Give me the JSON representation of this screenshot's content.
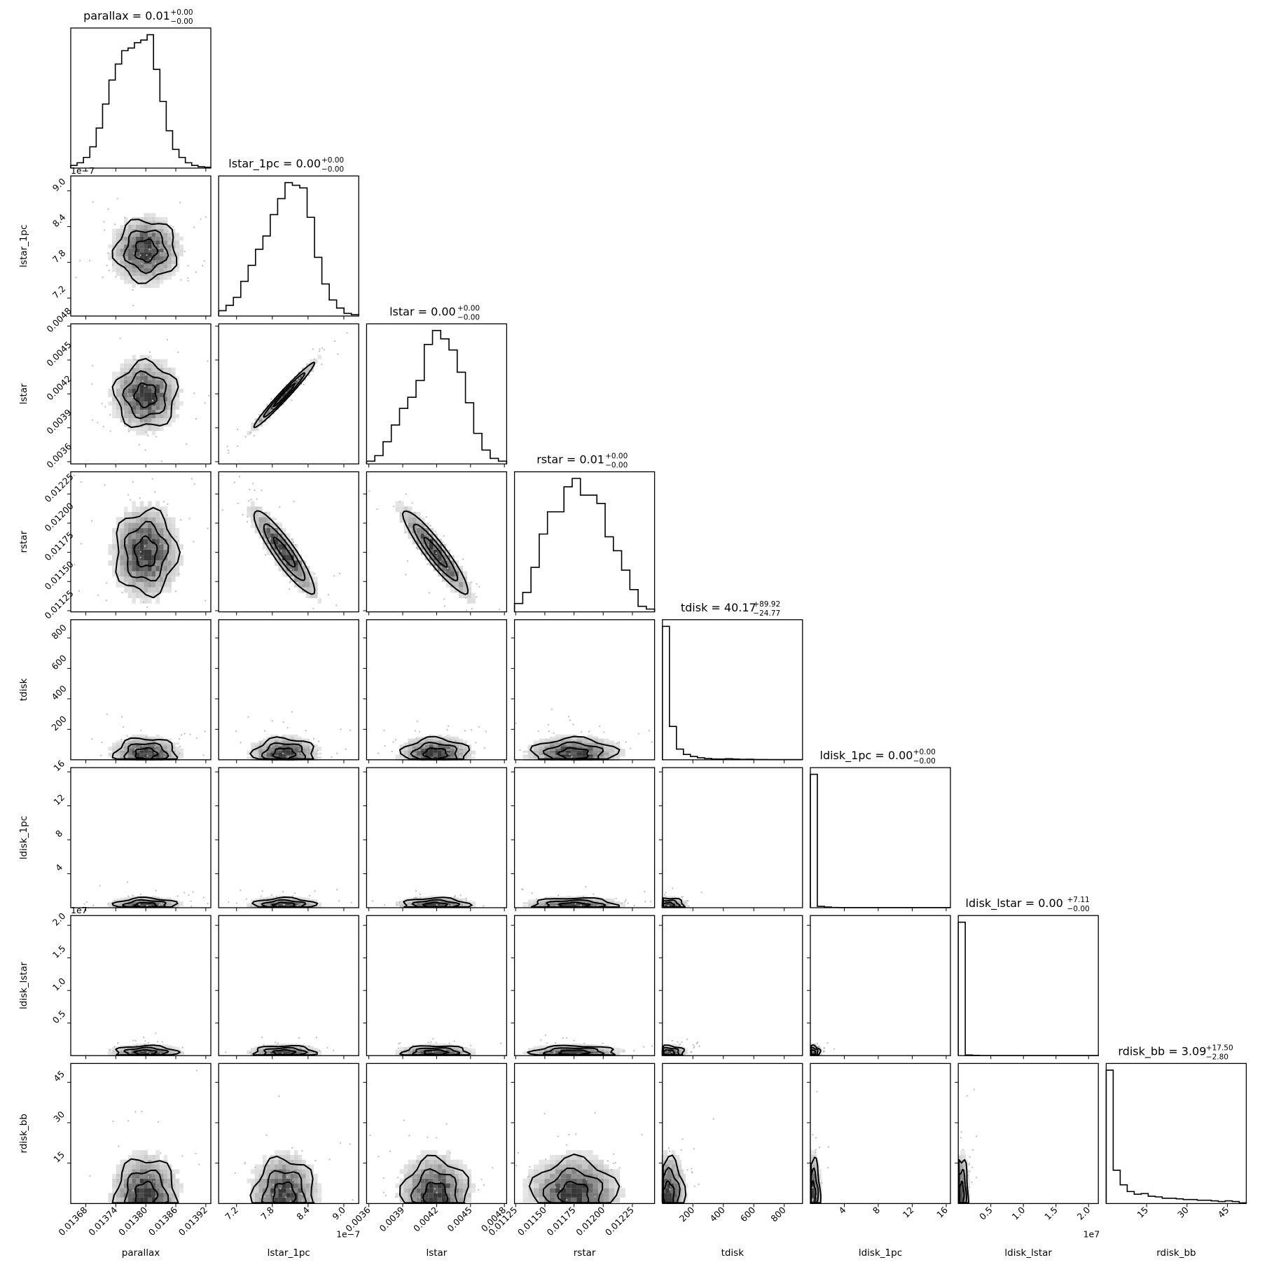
{
  "chart_data": {
    "type": "corner",
    "parameters": [
      {
        "name": "parallax",
        "title_value": "0.01",
        "err_plus": "0.00",
        "err_minus": "0.00",
        "range": [
          0.01365,
          0.01393
        ],
        "median": 0.0138,
        "sigma": 3.6e-05,
        "ticks": [
          0.01368,
          0.01374,
          0.0138,
          0.01386,
          0.01392
        ],
        "tick_labels": [
          "0.01368",
          "0.01374",
          "0.01380",
          "0.01386",
          "0.01392"
        ],
        "offset": ""
      },
      {
        "name": "lstar_1pc",
        "title_value": "0.00",
        "err_plus": "0.00",
        "err_minus": "0.00",
        "range": [
          6.9,
          9.25
        ],
        "median": 8.0,
        "sigma": 0.3,
        "ticks": [
          7.2,
          7.8,
          8.4,
          9.0
        ],
        "tick_labels": [
          "7.2",
          "7.8",
          "8.4",
          "9.0"
        ],
        "offset": "1e−7"
      },
      {
        "name": "lstar",
        "title_value": "0.00",
        "err_plus": "0.00",
        "err_minus": "0.00",
        "range": [
          0.00358,
          0.00482
        ],
        "median": 0.00419,
        "sigma": 0.00017,
        "ticks": [
          0.0036,
          0.0039,
          0.0042,
          0.0045,
          0.0048
        ],
        "tick_labels": [
          "0.0036",
          "0.0039",
          "0.0042",
          "0.0045",
          "0.0048"
        ],
        "offset": ""
      },
      {
        "name": "rstar",
        "title_value": "0.01",
        "err_plus": "0.00",
        "err_minus": "0.00",
        "range": [
          0.01124,
          0.01244
        ],
        "median": 0.01175,
        "sigma": 0.00021,
        "ticks": [
          0.01125,
          0.0115,
          0.01175,
          0.012,
          0.01225
        ],
        "tick_labels": [
          "0.01125",
          "0.01150",
          "0.01175",
          "0.01200",
          "0.01225"
        ],
        "offset": ""
      },
      {
        "name": "tdisk",
        "title_value": "40.17",
        "err_plus": "89.92",
        "err_minus": "24.77",
        "range": [
          0,
          920
        ],
        "median": 40.17,
        "sigma": 60,
        "ticks": [
          200,
          400,
          600,
          800
        ],
        "tick_labels": [
          "200",
          "400",
          "600",
          "800"
        ],
        "offset": ""
      },
      {
        "name": "ldisk_1pc",
        "title_value": "0.00",
        "err_plus": "0.00",
        "err_minus": "0.00",
        "range": [
          0,
          16.5
        ],
        "median": 0.3,
        "sigma": 0.5,
        "ticks": [
          4,
          8,
          12,
          16
        ],
        "tick_labels": [
          "4",
          "8",
          "12",
          "16"
        ],
        "offset": ""
      },
      {
        "name": "ldisk_lstar",
        "title_value": "0.00",
        "err_plus": "7.11",
        "err_minus": "0.00",
        "range": [
          0,
          2.15
        ],
        "median": 0.05,
        "sigma": 0.06,
        "ticks": [
          0.5,
          1.0,
          1.5,
          2.0
        ],
        "tick_labels": [
          "0.5",
          "1.0",
          "1.5",
          "2.0"
        ],
        "offset": "1e7"
      },
      {
        "name": "rdisk_bb",
        "title_value": "3.09",
        "err_plus": "17.50",
        "err_minus": "2.80",
        "range": [
          0,
          52
        ],
        "median": 3.09,
        "sigma": 8,
        "ticks": [
          15,
          30,
          45
        ],
        "tick_labels": [
          "15",
          "30",
          "45"
        ],
        "offset": ""
      }
    ],
    "histograms": [
      [
        1,
        2,
        4,
        8,
        15,
        24,
        33,
        39,
        44,
        45,
        47,
        48,
        50,
        37,
        25,
        14,
        7,
        4,
        2,
        1,
        0.5,
        0.3
      ],
      [
        2,
        4,
        7,
        13,
        19,
        25,
        30,
        38,
        44,
        50,
        49,
        48,
        37,
        22,
        12,
        6,
        3,
        1,
        0.5
      ],
      [
        1,
        3,
        8,
        14,
        20,
        24,
        30,
        43,
        48,
        45,
        41,
        33,
        22,
        11,
        5,
        2,
        1
      ],
      [
        3,
        7,
        16,
        28,
        36,
        36,
        45,
        48,
        42,
        42,
        39,
        27,
        22,
        15,
        8,
        2,
        1
      ],
      [
        100,
        25,
        8,
        4,
        2.5,
        1.5,
        1,
        0.6,
        0.5,
        0.8,
        0.5,
        0.3,
        0.4,
        0.2,
        0.2,
        0.1,
        0.1,
        0.1,
        0.1,
        0.1
      ],
      [
        100,
        1,
        0.5,
        0.2,
        0.1,
        0.1,
        0.1,
        0.1,
        0.1,
        0.1,
        0.1,
        0.1,
        0.1,
        0.1,
        0.1,
        0.1,
        0.1,
        0.1,
        0.1,
        0.1
      ],
      [
        100,
        0.5,
        0.2,
        0.1,
        0.1,
        0.1,
        0.1,
        0.1,
        0.1,
        0.1,
        0.1,
        0.1,
        0.1,
        0.1,
        0.1,
        0.1,
        0.1,
        0.1,
        0.1,
        0.1
      ],
      [
        100,
        25,
        14,
        9,
        7,
        7.5,
        5.5,
        5,
        4,
        4,
        3.5,
        3,
        3,
        2.5,
        2.5,
        2,
        1.5,
        2,
        1.5,
        0.5
      ]
    ],
    "correlations": {
      "1-2": 0.98,
      "1-3": -0.9,
      "2-3": -0.92
    }
  }
}
